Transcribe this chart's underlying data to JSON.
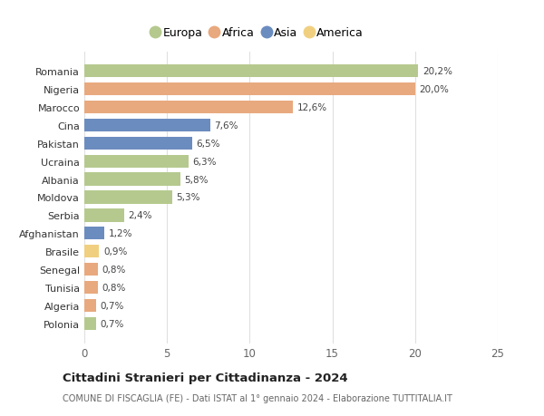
{
  "countries": [
    "Romania",
    "Nigeria",
    "Marocco",
    "Cina",
    "Pakistan",
    "Ucraina",
    "Albania",
    "Moldova",
    "Serbia",
    "Afghanistan",
    "Brasile",
    "Senegal",
    "Tunisia",
    "Algeria",
    "Polonia"
  ],
  "values": [
    20.2,
    20.0,
    12.6,
    7.6,
    6.5,
    6.3,
    5.8,
    5.3,
    2.4,
    1.2,
    0.9,
    0.8,
    0.8,
    0.7,
    0.7
  ],
  "labels": [
    "20,2%",
    "20,0%",
    "12,6%",
    "7,6%",
    "6,5%",
    "6,3%",
    "5,8%",
    "5,3%",
    "2,4%",
    "1,2%",
    "0,9%",
    "0,8%",
    "0,8%",
    "0,7%",
    "0,7%"
  ],
  "continents": [
    "Europa",
    "Africa",
    "Africa",
    "Asia",
    "Asia",
    "Europa",
    "Europa",
    "Europa",
    "Europa",
    "Asia",
    "America",
    "Africa",
    "Africa",
    "Africa",
    "Europa"
  ],
  "colors": {
    "Europa": "#b5c98e",
    "Africa": "#e8a97e",
    "Asia": "#6b8cbf",
    "America": "#f0d080"
  },
  "legend_order": [
    "Europa",
    "Africa",
    "Asia",
    "America"
  ],
  "title": "Cittadini Stranieri per Cittadinanza - 2024",
  "subtitle": "COMUNE DI FISCAGLIA (FE) - Dati ISTAT al 1° gennaio 2024 - Elaborazione TUTTITALIA.IT",
  "xlim": [
    0,
    25
  ],
  "xticks": [
    0,
    5,
    10,
    15,
    20,
    25
  ],
  "background_color": "#ffffff",
  "grid_color": "#e0e0e0"
}
